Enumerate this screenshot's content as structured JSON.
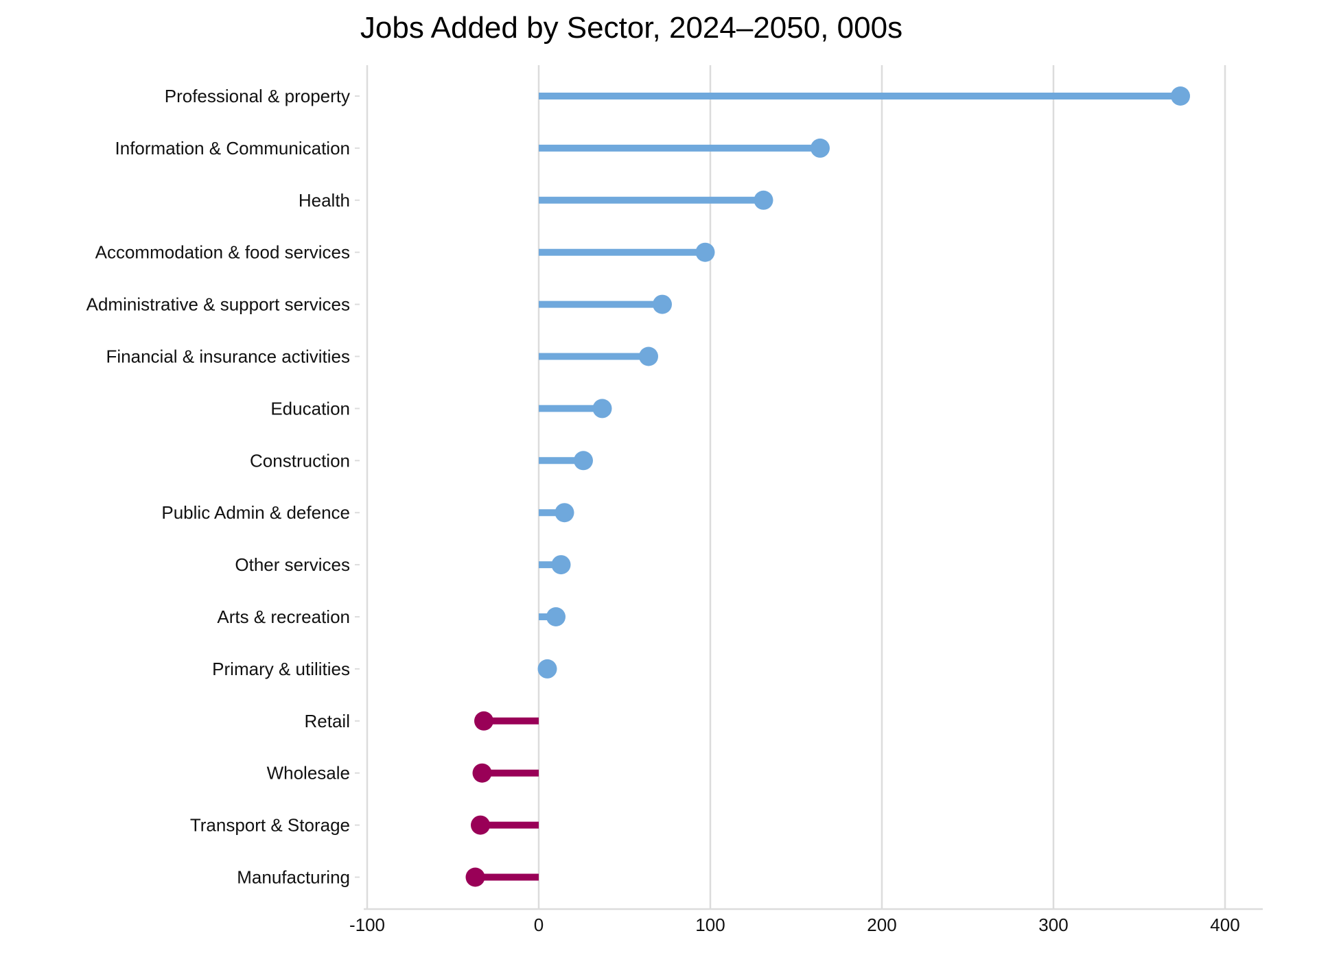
{
  "chart_data": {
    "type": "lollipop",
    "title": "Jobs Added by Sector, 2024–2050, 000s",
    "xlabel": "",
    "ylabel": "",
    "xlim": [
      -100,
      420
    ],
    "x_ticks": [
      -100,
      0,
      100,
      200,
      300,
      400
    ],
    "x_tick_labels": [
      "-100",
      "0",
      "100",
      "200",
      "300",
      "400"
    ],
    "grid": "vertical",
    "colors": {
      "positive": "#6fa8dc",
      "negative": "#990057",
      "grid": "#dcdcdc"
    },
    "categories": [
      "Professional & property",
      "Information & Communication",
      "Health",
      "Accommodation & food services",
      "Administrative & support services",
      "Financial & insurance activities",
      "Education",
      "Construction",
      "Public Admin & defence",
      "Other services",
      "Arts & recreation",
      "Primary & utilities",
      "Retail",
      "Wholesale",
      "Transport & Storage",
      "Manufacturing"
    ],
    "values": [
      374,
      164,
      131,
      97,
      72,
      64,
      37,
      26,
      15,
      13,
      10,
      5,
      -32,
      -33,
      -34,
      -37
    ]
  }
}
